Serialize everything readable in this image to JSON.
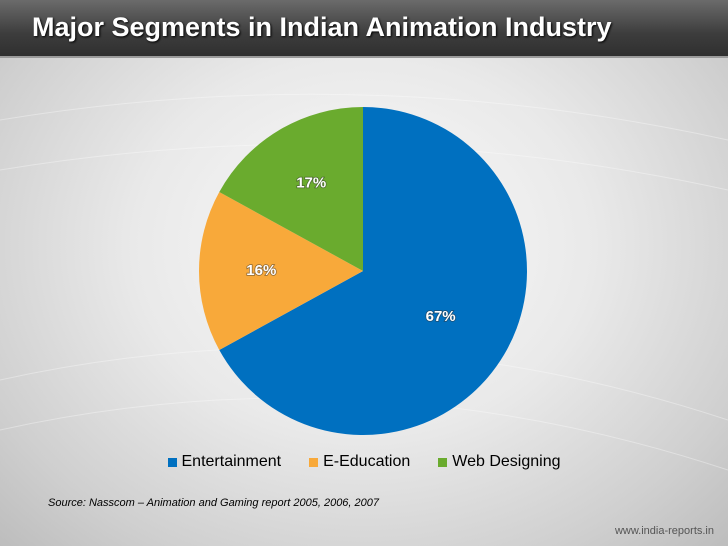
{
  "title": "Major Segments in Indian Animation Industry",
  "chart_data": {
    "type": "pie",
    "title": "",
    "slices": [
      {
        "label": "Entertainment",
        "value": 67,
        "data_label": "67%",
        "color": "#0070c0"
      },
      {
        "label": "E-Education",
        "value": 16,
        "data_label": "16%",
        "color": "#f8a93a"
      },
      {
        "label": "Web Designing",
        "value": 17,
        "data_label": "17%",
        "color": "#6aab2e"
      }
    ],
    "start_angle_deg": 0,
    "direction": "clockwise",
    "legend_position": "bottom"
  },
  "source": "Source: Nasscom – Animation and Gaming report 2005, 2006, 2007",
  "footer": "www.india-reports.in"
}
